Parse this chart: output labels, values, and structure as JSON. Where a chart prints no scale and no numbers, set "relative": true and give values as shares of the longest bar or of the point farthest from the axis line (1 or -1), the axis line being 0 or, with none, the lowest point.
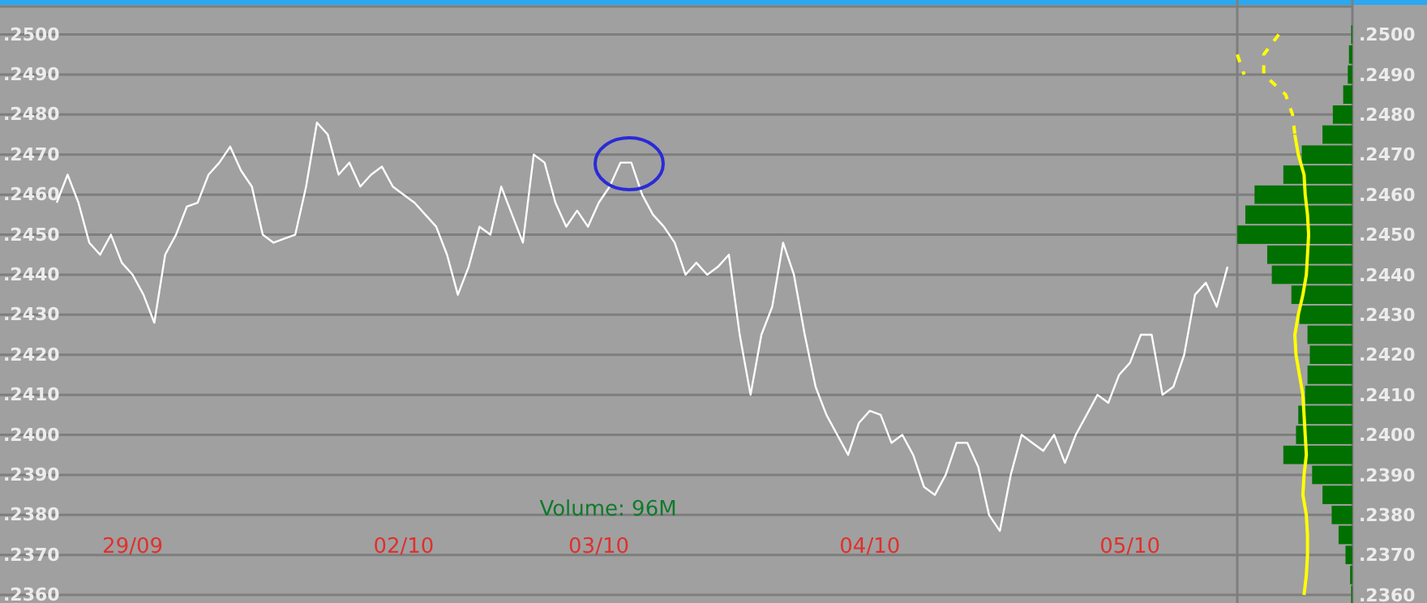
{
  "chart_data": [
    {
      "type": "line",
      "color": "#ffffff",
      "grid": "y",
      "categories": [
        null,
        null,
        null,
        null,
        null,
        null,
        null,
        "29/09",
        null,
        null,
        null,
        null,
        null,
        null,
        null,
        null,
        null,
        null,
        null,
        null,
        null,
        null,
        null,
        null,
        null,
        null,
        null,
        null,
        null,
        null,
        null,
        null,
        "02/10",
        null,
        null,
        null,
        null,
        null,
        null,
        null,
        null,
        null,
        null,
        null,
        null,
        null,
        null,
        null,
        null,
        null,
        "03/10",
        null,
        null,
        null,
        null,
        null,
        null,
        null,
        null,
        null,
        null,
        null,
        null,
        null,
        null,
        null,
        null,
        null,
        null,
        null,
        null,
        null,
        null,
        null,
        null,
        "04/10",
        null,
        null,
        null,
        null,
        null,
        null,
        null,
        null,
        null,
        null,
        null,
        null,
        null,
        null,
        null,
        null,
        null,
        null,
        null,
        null,
        null,
        null,
        null,
        "05/10",
        null,
        null,
        null,
        null,
        null,
        null,
        null,
        null,
        null
      ],
      "values": [
        0.2458,
        0.2465,
        0.2458,
        0.2448,
        0.2445,
        0.245,
        0.2443,
        0.244,
        0.2435,
        0.2428,
        0.2445,
        0.245,
        0.2457,
        0.2458,
        0.2465,
        0.2468,
        0.2472,
        0.2466,
        0.2462,
        0.245,
        0.2448,
        0.2449,
        0.245,
        0.2462,
        0.2478,
        0.2475,
        0.2465,
        0.2468,
        0.2462,
        0.2465,
        0.2467,
        0.2462,
        0.246,
        0.2458,
        0.2455,
        0.2452,
        0.2445,
        0.2435,
        0.2442,
        0.2452,
        0.245,
        0.2462,
        0.2455,
        0.2448,
        0.247,
        0.2468,
        0.2458,
        0.2452,
        0.2456,
        0.2452,
        0.2458,
        0.2462,
        0.2468,
        0.2468,
        0.246,
        0.2455,
        0.2452,
        0.2448,
        0.244,
        0.2443,
        0.244,
        0.2442,
        0.2445,
        0.2425,
        0.241,
        0.2425,
        0.2432,
        0.2448,
        0.244,
        0.2425,
        0.2412,
        0.2405,
        0.24,
        0.2395,
        0.2403,
        0.2406,
        0.2405,
        0.2398,
        0.24,
        0.2395,
        0.2387,
        0.2385,
        0.239,
        0.2398,
        0.2398,
        0.2392,
        0.238,
        0.2376,
        0.239,
        0.24,
        0.2398,
        0.2396,
        0.24,
        0.2393,
        0.24,
        0.2405,
        0.241,
        0.2408,
        0.2415,
        0.2418,
        0.2425,
        0.2425,
        0.241,
        0.2412,
        0.242,
        0.2435,
        0.2438,
        0.2432,
        0.2442
      ],
      "ylim": [
        0.2358,
        0.2507
      ],
      "yticks": [
        {
          "value": 0.25,
          "label": ".2500"
        },
        {
          "value": 0.249,
          "label": ".2490"
        },
        {
          "value": 0.248,
          "label": ".2480"
        },
        {
          "value": 0.247,
          "label": ".2470"
        },
        {
          "value": 0.246,
          "label": ".2460"
        },
        {
          "value": 0.245,
          "label": ".2450"
        },
        {
          "value": 0.244,
          "label": ".2440"
        },
        {
          "value": 0.243,
          "label": ".2430"
        },
        {
          "value": 0.242,
          "label": ".2420"
        },
        {
          "value": 0.241,
          "label": ".2410"
        },
        {
          "value": 0.24,
          "label": ".2400"
        },
        {
          "value": 0.239,
          "label": ".2390"
        },
        {
          "value": 0.238,
          "label": ".2380"
        },
        {
          "value": 0.237,
          "label": ".2370"
        },
        {
          "value": 0.236,
          "label": ".2360"
        }
      ],
      "annotations": [
        "Volume: 96M"
      ]
    },
    {
      "type": "bar",
      "orientation": "horizontal",
      "relative": true,
      "categories": [
        ".2500",
        null,
        ".2490",
        null,
        ".2480",
        null,
        ".2470",
        null,
        ".2460",
        null,
        ".2450",
        null,
        ".2440",
        null,
        ".2430",
        null,
        ".2420",
        null,
        ".2410",
        null,
        ".2400",
        null,
        ".2390",
        null,
        ".2380",
        null,
        ".2370",
        null,
        ".2360"
      ],
      "series": [
        {
          "color": "#007000",
          "values": [
            0.01,
            0.03,
            0.04,
            0.08,
            0.17,
            0.26,
            0.44,
            0.6,
            0.85,
            0.93,
            1.0,
            0.74,
            0.7,
            0.53,
            0.46,
            0.39,
            0.37,
            0.39,
            0.41,
            0.47,
            0.49,
            0.6,
            0.35,
            0.26,
            0.18,
            0.12,
            0.06,
            0.02,
            0.01
          ]
        },
        {
          "type": "line",
          "line_style": "solid",
          "color": "#ffff00",
          "values": [
            null,
            null,
            null,
            null,
            null,
            0.5,
            0.47,
            0.42,
            0.41,
            0.39,
            0.38,
            0.39,
            0.4,
            0.43,
            0.47,
            0.5,
            0.49,
            0.46,
            0.43,
            0.42,
            0.41,
            0.4,
            0.42,
            0.43,
            0.4,
            0.39,
            0.39,
            0.4,
            0.42
          ]
        },
        {
          "type": "line",
          "line_style": "dashed",
          "color": "#ffff00",
          "values": [
            0.64,
            0.77,
            0.77,
            0.58,
            0.52,
            0.5,
            null,
            null,
            null,
            null,
            null,
            null,
            null,
            null,
            null,
            null,
            null,
            null,
            null,
            null,
            null,
            null,
            null,
            null,
            null,
            null,
            null,
            null,
            null
          ]
        },
        {
          "type": "line",
          "line_style": "dashed",
          "color": "#ffff00",
          "values": [
            null,
            1.0,
            0.94,
            null,
            null,
            null,
            null,
            null,
            null,
            null,
            null,
            null,
            null,
            null,
            null,
            null,
            null,
            null,
            null,
            null,
            null,
            null,
            null,
            null,
            null,
            null,
            null,
            null,
            null
          ]
        }
      ]
    }
  ]
}
